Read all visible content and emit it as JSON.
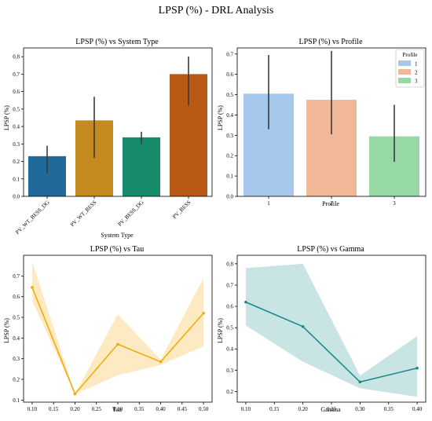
{
  "figure": {
    "title": "LPSP (%) - DRL Analysis"
  },
  "chart_data": [
    {
      "type": "bar",
      "title": "LPSP (%) vs System Type",
      "xlabel": "System Type",
      "ylabel": "LPSP (%)",
      "categories": [
        "PV_WT_BESS_DG",
        "PV_WT_BESS",
        "PV_BESS_DG",
        "PV_BESS"
      ],
      "values": [
        0.23,
        0.435,
        0.338,
        0.7
      ],
      "error_low": [
        0.13,
        0.22,
        0.3,
        0.52
      ],
      "error_high": [
        0.29,
        0.57,
        0.37,
        0.8
      ],
      "colors": [
        "#1f6a99",
        "#c4891f",
        "#178a6b",
        "#b85a16"
      ],
      "ylim": [
        0,
        0.85
      ],
      "yticks": [
        "0.0",
        "0.1",
        "0.2",
        "0.3",
        "0.4",
        "0.5",
        "0.6",
        "0.7",
        "0.8"
      ],
      "grid": false
    },
    {
      "type": "bar",
      "title": "LPSP (%) vs Profile",
      "xlabel": "Profile",
      "ylabel": "LPSP (%)",
      "categories": [
        "1",
        "2",
        "3"
      ],
      "values": [
        0.505,
        0.475,
        0.295
      ],
      "error_low": [
        0.33,
        0.305,
        0.17
      ],
      "error_high": [
        0.695,
        0.715,
        0.45
      ],
      "colors": [
        "#a7c8ed",
        "#f0b896",
        "#96d9a5"
      ],
      "ylim": [
        0,
        0.73
      ],
      "yticks": [
        "0.0",
        "0.1",
        "0.2",
        "0.3",
        "0.4",
        "0.5",
        "0.6",
        "0.7"
      ],
      "legend": {
        "title": "Profile",
        "entries": [
          "1",
          "2",
          "3"
        ],
        "placement": "top-right"
      },
      "grid": false
    },
    {
      "type": "line",
      "title": "LPSP (%) vs Tau",
      "xlabel": "Tau",
      "ylabel": "LPSP (%)",
      "x": [
        0.1,
        0.2,
        0.3,
        0.4,
        0.5
      ],
      "y": [
        0.645,
        0.13,
        0.37,
        0.285,
        0.52
      ],
      "ci_low": [
        0.58,
        0.13,
        0.22,
        0.27,
        0.36
      ],
      "ci_high": [
        0.77,
        0.13,
        0.515,
        0.295,
        0.69
      ],
      "color": "#f2a900",
      "band_color": "#fde6b8",
      "xlim": [
        0.08,
        0.52
      ],
      "ylim": [
        0.09,
        0.8
      ],
      "xticks": [
        "0.10",
        "0.15",
        "0.20",
        "0.25",
        "0.30",
        "0.35",
        "0.40",
        "0.45",
        "0.50"
      ],
      "yticks": [
        "0.1",
        "0.2",
        "0.3",
        "0.4",
        "0.5",
        "0.6",
        "0.7"
      ],
      "grid": false
    },
    {
      "type": "line",
      "title": "LPSP (%) vs Gamma",
      "xlabel": "Gamma",
      "ylabel": "LPSP (%)",
      "x": [
        0.1,
        0.2,
        0.3,
        0.4
      ],
      "y": [
        0.62,
        0.505,
        0.245,
        0.31
      ],
      "ci_low": [
        0.51,
        0.34,
        0.215,
        0.175
      ],
      "ci_high": [
        0.78,
        0.8,
        0.275,
        0.46
      ],
      "color": "#17878a",
      "band_color": "#bfe0de",
      "xlim": [
        0.085,
        0.415
      ],
      "ylim": [
        0.15,
        0.84
      ],
      "xticks": [
        "0.10",
        "0.15",
        "0.20",
        "0.25",
        "0.30",
        "0.35",
        "0.40"
      ],
      "yticks": [
        "0.2",
        "0.3",
        "0.4",
        "0.5",
        "0.6",
        "0.7",
        "0.8"
      ],
      "grid": false
    }
  ]
}
